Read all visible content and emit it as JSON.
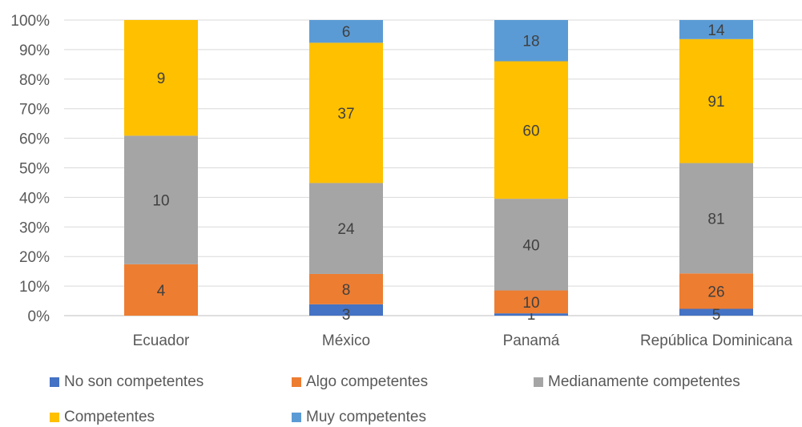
{
  "chart_data": {
    "type": "bar",
    "stacked": "percent",
    "categories": [
      "Ecuador",
      "México",
      "Panamá",
      "República Dominicana"
    ],
    "series": [
      {
        "name": "No son competentes",
        "values": [
          0,
          3,
          1,
          5
        ],
        "color": "#4472C4"
      },
      {
        "name": "Algo competentes",
        "values": [
          4,
          8,
          10,
          26
        ],
        "color": "#ED7D31"
      },
      {
        "name": "Medianamente competentes",
        "values": [
          10,
          24,
          40,
          81
        ],
        "color": "#A5A5A5"
      },
      {
        "name": "Competentes",
        "values": [
          9,
          37,
          60,
          91
        ],
        "color": "#FFC000"
      },
      {
        "name": "Muy competentes",
        "values": [
          0,
          6,
          18,
          14
        ],
        "color": "#5B9BD5"
      }
    ],
    "y_ticks": [
      "0%",
      "10%",
      "20%",
      "30%",
      "40%",
      "50%",
      "60%",
      "70%",
      "80%",
      "90%",
      "100%"
    ],
    "ylim": [
      0,
      100
    ],
    "grid": true,
    "legend_position": "bottom"
  }
}
